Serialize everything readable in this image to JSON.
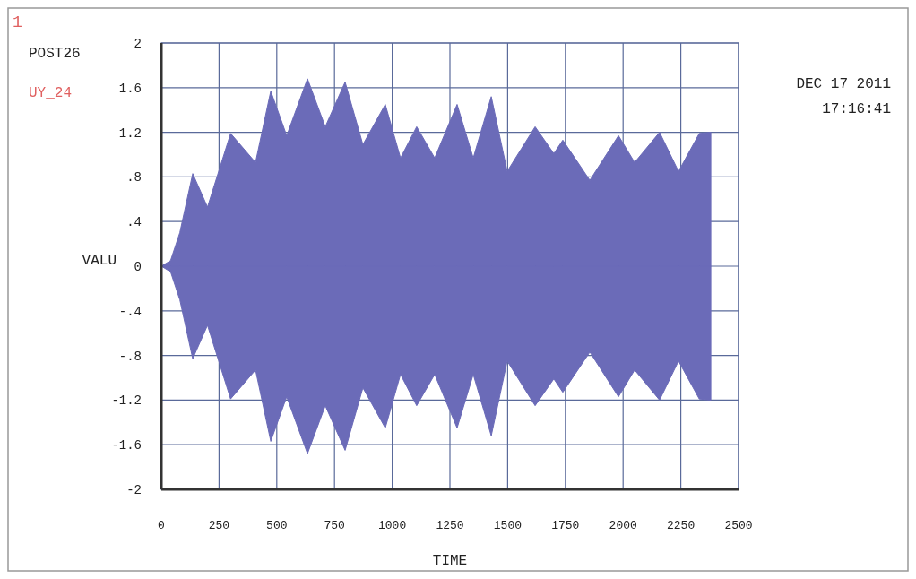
{
  "chart_data": {
    "type": "area",
    "xlabel": "TIME",
    "ylabel": "VALU",
    "annotations": [
      "1",
      "POST26",
      "UY_24",
      "DEC 17 2011",
      "17:16:41"
    ],
    "xlim": [
      0,
      2500
    ],
    "xticks": [
      0,
      250,
      500,
      750,
      1000,
      1250,
      1500,
      1750,
      2000,
      2250,
      2500
    ],
    "ylim": [
      -2,
      2
    ],
    "yticks": [
      -2,
      {
        "value": -1.6,
        "label": "-1.6"
      },
      {
        "value": -1.2,
        "label": "-1.2"
      },
      {
        "value": -0.8,
        "label": "-.8"
      },
      {
        "value": -0.4,
        "label": "-.4"
      },
      0,
      {
        "value": 0.4,
        "label": ".4"
      },
      {
        "value": 0.8,
        "label": ".8"
      },
      {
        "value": 1.2,
        "label": "1.2"
      },
      {
        "value": 1.6,
        "label": "1.6"
      },
      2
    ],
    "grid": true,
    "x": [
      0,
      40,
      80,
      136,
      200,
      300,
      408,
      474,
      543,
      633,
      710,
      796,
      873,
      970,
      1036,
      1106,
      1184,
      1281,
      1351,
      1429,
      1498,
      1619,
      1700,
      1739,
      1856,
      1980,
      2050,
      2158,
      2240,
      2330,
      2380
    ],
    "series": [
      {
        "color": "#6b6bb8",
        "values": [
          0,
          0.05,
          0.3,
          0.83,
          0.53,
          1.19,
          0.93,
          1.57,
          1.17,
          1.68,
          1.25,
          1.65,
          1.09,
          1.45,
          0.97,
          1.25,
          0.97,
          1.45,
          0.97,
          1.52,
          0.85,
          1.25,
          1.01,
          1.13,
          0.77,
          1.17,
          0.93,
          1.2,
          0.85,
          1.19,
          1.2
        ]
      },
      {
        "color": "#6b6bb8",
        "values": [
          0,
          -0.05,
          -0.3,
          -0.83,
          -0.53,
          -1.19,
          -0.93,
          -1.57,
          -1.17,
          -1.68,
          -1.25,
          -1.65,
          -1.09,
          -1.45,
          -0.97,
          -1.25,
          -0.97,
          -1.45,
          -0.97,
          -1.52,
          -0.85,
          -1.25,
          -1.01,
          -1.13,
          -0.77,
          -1.17,
          -0.93,
          -1.2,
          -0.85,
          -1.19,
          -1.2
        ]
      }
    ]
  }
}
